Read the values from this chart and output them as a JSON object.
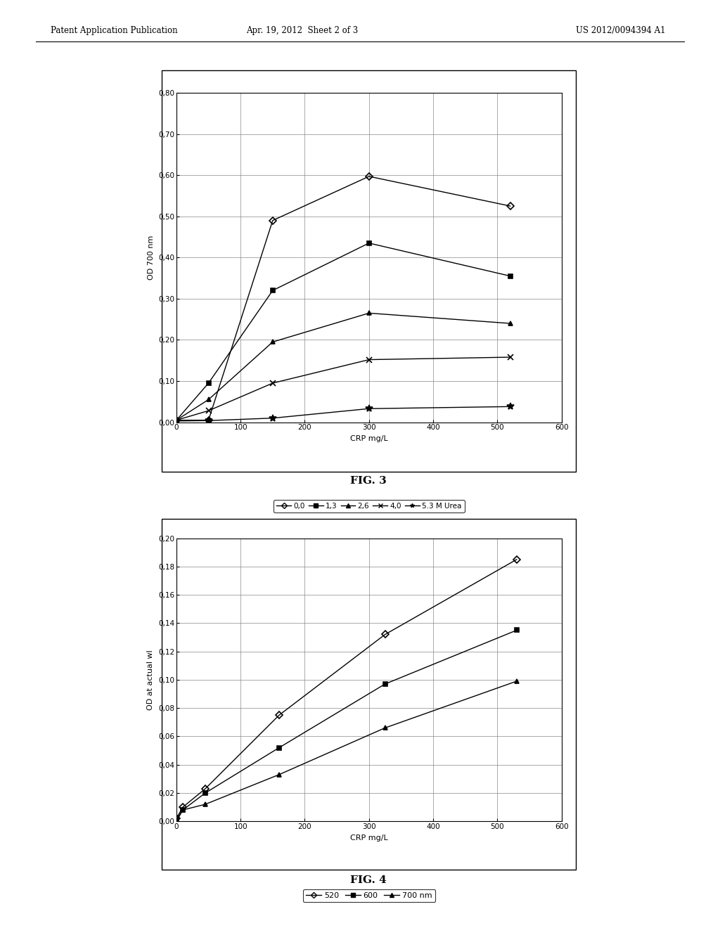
{
  "header_left": "Patent Application Publication",
  "header_mid": "Apr. 19, 2012  Sheet 2 of 3",
  "header_right": "US 2012/0094394 A1",
  "fig3": {
    "title": "FIG. 3",
    "xlabel": "CRP mg/L",
    "ylabel": "OD 700 nm",
    "xlim": [
      0,
      600
    ],
    "ylim": [
      0.0,
      0.8
    ],
    "xticks": [
      0,
      100,
      200,
      300,
      400,
      500,
      600
    ],
    "yticks": [
      0.0,
      0.1,
      0.2,
      0.3,
      0.4,
      0.5,
      0.6,
      0.7,
      0.8
    ],
    "series": [
      {
        "label": "0,0",
        "marker": "D",
        "marker_size": 5,
        "fillstyle": "none",
        "x": [
          0,
          50,
          150,
          300,
          520
        ],
        "y": [
          0.005,
          0.005,
          0.49,
          0.597,
          0.525
        ]
      },
      {
        "label": "1,3",
        "marker": "s",
        "marker_size": 5,
        "fillstyle": "full",
        "x": [
          0,
          50,
          150,
          300,
          520
        ],
        "y": [
          0.005,
          0.095,
          0.32,
          0.435,
          0.355
        ]
      },
      {
        "label": "2,6",
        "marker": "^",
        "marker_size": 5,
        "fillstyle": "full",
        "x": [
          0,
          50,
          150,
          300,
          520
        ],
        "y": [
          0.005,
          0.055,
          0.195,
          0.265,
          0.24
        ]
      },
      {
        "label": "4,0",
        "marker": "x",
        "marker_size": 6,
        "fillstyle": "full",
        "x": [
          0,
          50,
          150,
          300,
          520
        ],
        "y": [
          0.005,
          0.028,
          0.095,
          0.152,
          0.158
        ]
      },
      {
        "label": "5.3 M Urea",
        "marker": "*",
        "marker_size": 7,
        "fillstyle": "full",
        "x": [
          0,
          50,
          150,
          300,
          520
        ],
        "y": [
          0.003,
          0.004,
          0.01,
          0.033,
          0.038
        ]
      }
    ],
    "legend_labels": [
      "0,0",
      "1,3",
      "2,6",
      "4,0",
      "5.3 M Urea"
    ]
  },
  "fig4": {
    "title": "FIG. 4",
    "xlabel": "CRP mg/L",
    "ylabel": "OD at actual wl",
    "xlim": [
      0,
      600
    ],
    "ylim": [
      0.0,
      0.2
    ],
    "xticks": [
      0,
      100,
      200,
      300,
      400,
      500,
      600
    ],
    "yticks": [
      0.0,
      0.02,
      0.04,
      0.06,
      0.08,
      0.1,
      0.12,
      0.14,
      0.16,
      0.18,
      0.2
    ],
    "series": [
      {
        "label": "520",
        "marker": "D",
        "marker_size": 5,
        "fillstyle": "none",
        "x": [
          0,
          10,
          45,
          160,
          325,
          530
        ],
        "y": [
          0.002,
          0.01,
          0.023,
          0.075,
          0.132,
          0.185
        ]
      },
      {
        "label": "600",
        "marker": "s",
        "marker_size": 5,
        "fillstyle": "full",
        "x": [
          0,
          10,
          45,
          160,
          325,
          530
        ],
        "y": [
          0.001,
          0.008,
          0.02,
          0.052,
          0.097,
          0.135
        ]
      },
      {
        "label": "700 nm",
        "marker": "^",
        "marker_size": 5,
        "fillstyle": "full",
        "x": [
          0,
          10,
          45,
          160,
          325,
          530
        ],
        "y": [
          0.0,
          0.008,
          0.012,
          0.033,
          0.066,
          0.099
        ]
      }
    ],
    "legend_labels": [
      "520",
      "600",
      "700 nm"
    ]
  },
  "bg_color": "#ffffff",
  "line_color": "#000000",
  "text_color": "#000000",
  "chart_bg": "#f5f5f5"
}
